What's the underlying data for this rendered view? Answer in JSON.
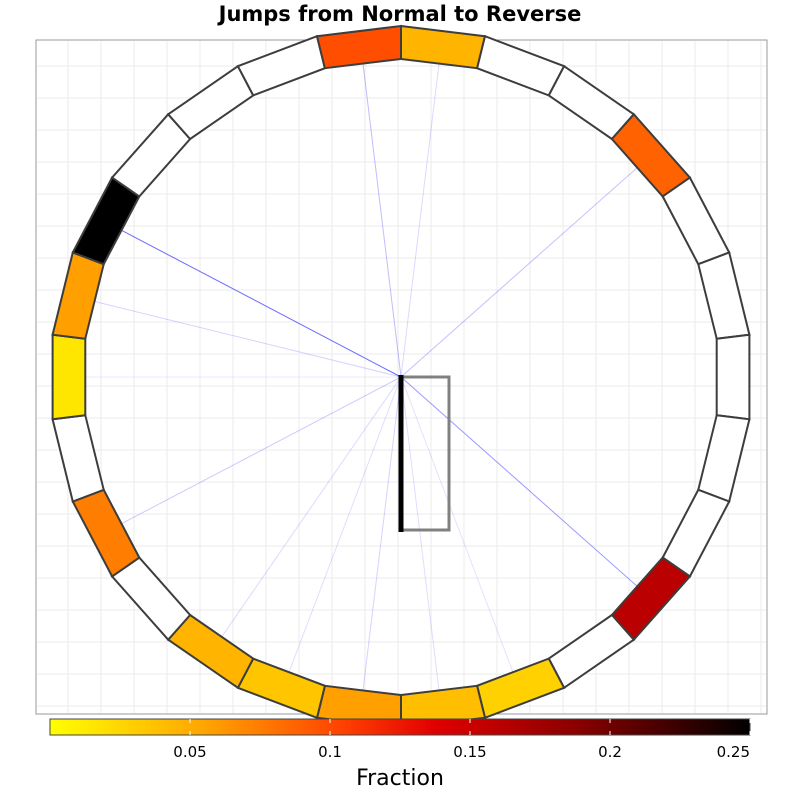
{
  "chart_data": {
    "type": "radial-heatmap",
    "title": "Jumps from Normal to Reverse",
    "segments_count": 26,
    "segments": [
      {
        "position": 0,
        "value": 0.045
      },
      {
        "position": 1,
        "value": null
      },
      {
        "position": 2,
        "value": null
      },
      {
        "position": 3,
        "value": 0.088
      },
      {
        "position": 4,
        "value": null
      },
      {
        "position": 5,
        "value": null
      },
      {
        "position": 6,
        "value": null
      },
      {
        "position": 7,
        "value": null
      },
      {
        "position": 8,
        "value": null
      },
      {
        "position": 9,
        "value": 0.16
      },
      {
        "position": 10,
        "value": null
      },
      {
        "position": 11,
        "value": 0.028
      },
      {
        "position": 12,
        "value": 0.04
      },
      {
        "position": 13,
        "value": 0.058
      },
      {
        "position": 14,
        "value": 0.035
      },
      {
        "position": 15,
        "value": 0.045
      },
      {
        "position": 16,
        "value": null
      },
      {
        "position": 17,
        "value": 0.075
      },
      {
        "position": 18,
        "value": null
      },
      {
        "position": 19,
        "value": 0.015
      },
      {
        "position": 20,
        "value": 0.058
      },
      {
        "position": 21,
        "value": 0.25
      },
      {
        "position": 22,
        "value": null
      },
      {
        "position": 23,
        "value": null
      },
      {
        "position": 24,
        "value": null
      },
      {
        "position": 25,
        "value": 0.098
      }
    ],
    "jumps": [
      {
        "to_position": 21,
        "weight": 0.25
      },
      {
        "to_position": 9,
        "weight": 0.16
      },
      {
        "to_position": 25,
        "weight": 0.098
      },
      {
        "to_position": 3,
        "weight": 0.088
      },
      {
        "to_position": 17,
        "weight": 0.075
      },
      {
        "to_position": 0,
        "weight": 0.045
      },
      {
        "to_position": 15,
        "weight": 0.045
      },
      {
        "to_position": 12,
        "weight": 0.04
      },
      {
        "to_position": 14,
        "weight": 0.035
      },
      {
        "to_position": 13,
        "weight": 0.058
      },
      {
        "to_position": 20,
        "weight": 0.058
      },
      {
        "to_position": 11,
        "weight": 0.028
      },
      {
        "to_position": 19,
        "weight": 0.015
      }
    ],
    "colorbar": {
      "title": "Fraction",
      "range": [
        0,
        0.25
      ],
      "ticks": [
        0.05,
        0.1,
        0.15,
        0.2,
        0.25
      ],
      "tick_labels": [
        "0.05",
        "0.1",
        "0.15",
        "0.2",
        "0.25"
      ],
      "colors": [
        "#ffff00",
        "#ffa500",
        "#ff6000",
        "#ee0000",
        "#8b0000",
        "#000000"
      ]
    },
    "grid": true,
    "legend_position": "bottom"
  }
}
